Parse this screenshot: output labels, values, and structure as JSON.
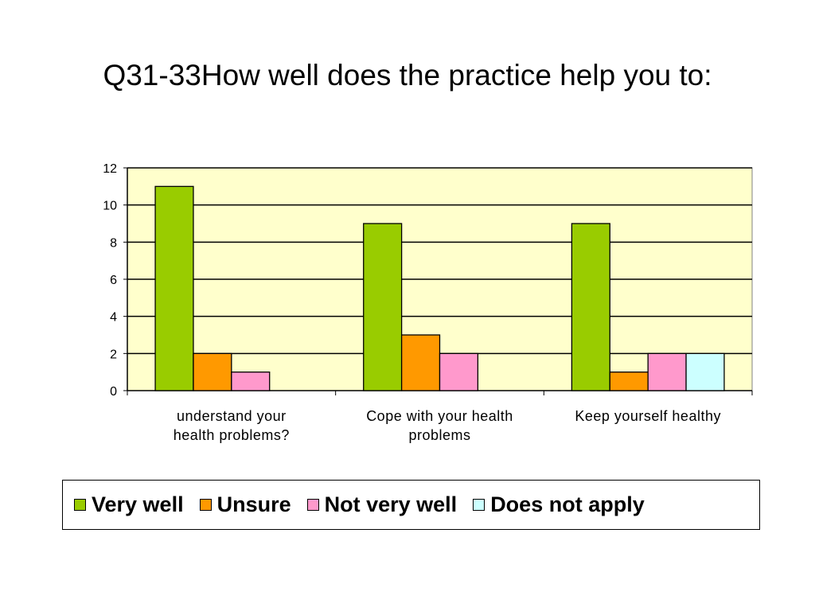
{
  "title": "Q31-33How well does the practice help you to:",
  "chart_data": {
    "type": "bar",
    "categories": [
      [
        "understand your",
        "health problems?"
      ],
      [
        "Cope with your health",
        "problems"
      ],
      [
        "Keep yourself healthy"
      ]
    ],
    "series": [
      {
        "name": "Very well",
        "color": "#99cc00",
        "values": [
          11,
          9,
          9
        ]
      },
      {
        "name": "Unsure",
        "color": "#ff9900",
        "values": [
          2,
          3,
          1
        ]
      },
      {
        "name": "Not very well",
        "color": "#ff99cc",
        "values": [
          1,
          2,
          2
        ]
      },
      {
        "name": "Does not apply",
        "color": "#ccffff",
        "values": [
          0,
          0,
          2
        ]
      }
    ],
    "yticks": [
      "0",
      "2",
      "4",
      "6",
      "8",
      "10",
      "12"
    ],
    "ylim": [
      0,
      12
    ],
    "grid": true,
    "plot_background": "#ffffcc",
    "legend_position": "bottom"
  }
}
